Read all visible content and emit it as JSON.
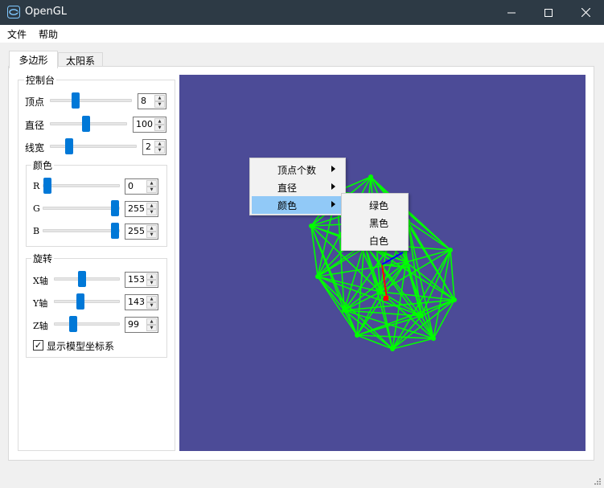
{
  "window": {
    "title": "OpenGL",
    "icon": "opengl-app-icon",
    "controls": [
      "minimize-icon",
      "maximize-icon",
      "close-icon"
    ],
    "titlebar_color": "#2d3a45"
  },
  "menubar": {
    "items": [
      {
        "label": "文件"
      },
      {
        "label": "帮助"
      }
    ]
  },
  "tabs": [
    {
      "label": "多边形",
      "active": true
    },
    {
      "label": "太阳系",
      "active": false
    }
  ],
  "control_panel": {
    "title": "控制台",
    "vertices": {
      "label": "顶点",
      "value": "8",
      "slider_fraction": 0.27
    },
    "diameter": {
      "label": "直径",
      "value": "100",
      "slider_fraction": 0.46
    },
    "line_width": {
      "label": "线宽",
      "value": "2",
      "slider_fraction": 0.19
    },
    "color_group": {
      "title": "颜色",
      "r": {
        "label": "R",
        "value": "0",
        "slider_fraction": 0.0
      },
      "g": {
        "label": "G",
        "value": "255",
        "slider_fraction": 1.0
      },
      "b": {
        "label": "B",
        "value": "255",
        "slider_fraction": 1.0
      }
    },
    "rotation_group": {
      "title": "旋转",
      "x": {
        "label": "X轴",
        "value": "153",
        "slider_fraction": 0.425
      },
      "y": {
        "label": "Y轴",
        "value": "143",
        "slider_fraction": 0.397
      },
      "z": {
        "label": "Z轴",
        "value": "99",
        "slider_fraction": 0.275
      }
    },
    "show_axes": {
      "label": "显示模型坐标系",
      "checked": true
    }
  },
  "gl_view": {
    "background": "#4c4b97",
    "mesh_color": "#00ff00",
    "axis_colors": {
      "x": "#ff0000",
      "y": "#00ff00",
      "z": "#0000ff"
    }
  },
  "context_menu": {
    "items": [
      {
        "label": "顶点个数",
        "has_submenu": true
      },
      {
        "label": "直径",
        "has_submenu": true
      },
      {
        "label": "颜色",
        "has_submenu": true,
        "highlighted": true
      }
    ],
    "submenu": {
      "items": [
        {
          "label": "绿色"
        },
        {
          "label": "黑色"
        },
        {
          "label": "白色"
        }
      ]
    }
  }
}
